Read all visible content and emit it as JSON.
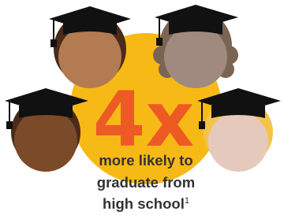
{
  "headline": "4x",
  "lines": [
    "more likely to",
    "graduate from",
    "high school"
  ],
  "footnote": "1"
}
